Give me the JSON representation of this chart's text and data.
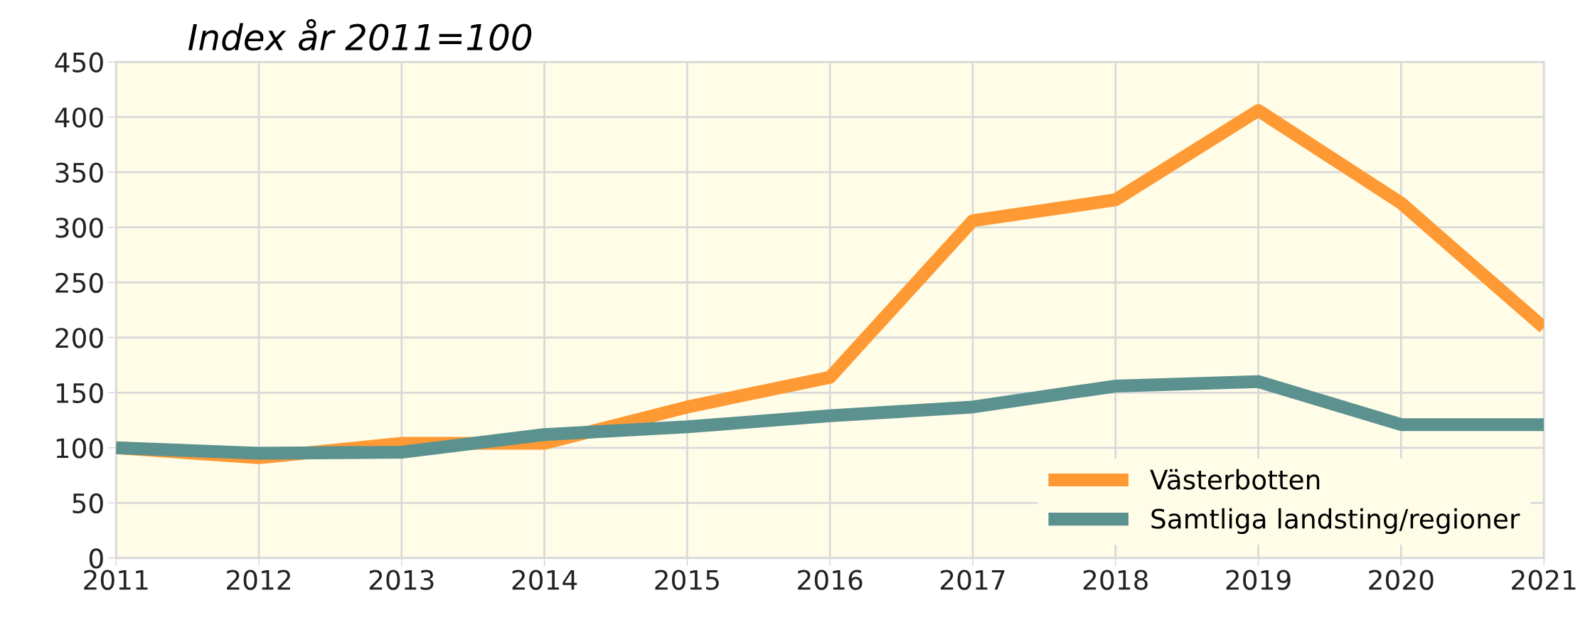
{
  "chart_data": {
    "type": "line",
    "title": "Index år 2011=100",
    "x": [
      2011,
      2012,
      2013,
      2014,
      2015,
      2016,
      2017,
      2018,
      2019,
      2020,
      2021
    ],
    "series": [
      {
        "name": "Västerbotten",
        "color": "#ff9933",
        "values": [
          100,
          91,
          104,
          104,
          137,
          164,
          306,
          325,
          406,
          322,
          209
        ]
      },
      {
        "name": "Samtliga landsting/regioner",
        "color": "#5b9290",
        "values": [
          100,
          95,
          96,
          112,
          119,
          129,
          137,
          156,
          160,
          121,
          121
        ]
      }
    ],
    "xlim": [
      2011,
      2021
    ],
    "xticks": [
      2011,
      2012,
      2013,
      2014,
      2015,
      2016,
      2017,
      2018,
      2019,
      2020,
      2021
    ],
    "ylim": [
      0,
      450
    ],
    "yticks": [
      0,
      50,
      100,
      150,
      200,
      250,
      300,
      350,
      400,
      450
    ],
    "grid": true,
    "legend": "bottom right",
    "marker": "none",
    "line_style": "solid"
  }
}
